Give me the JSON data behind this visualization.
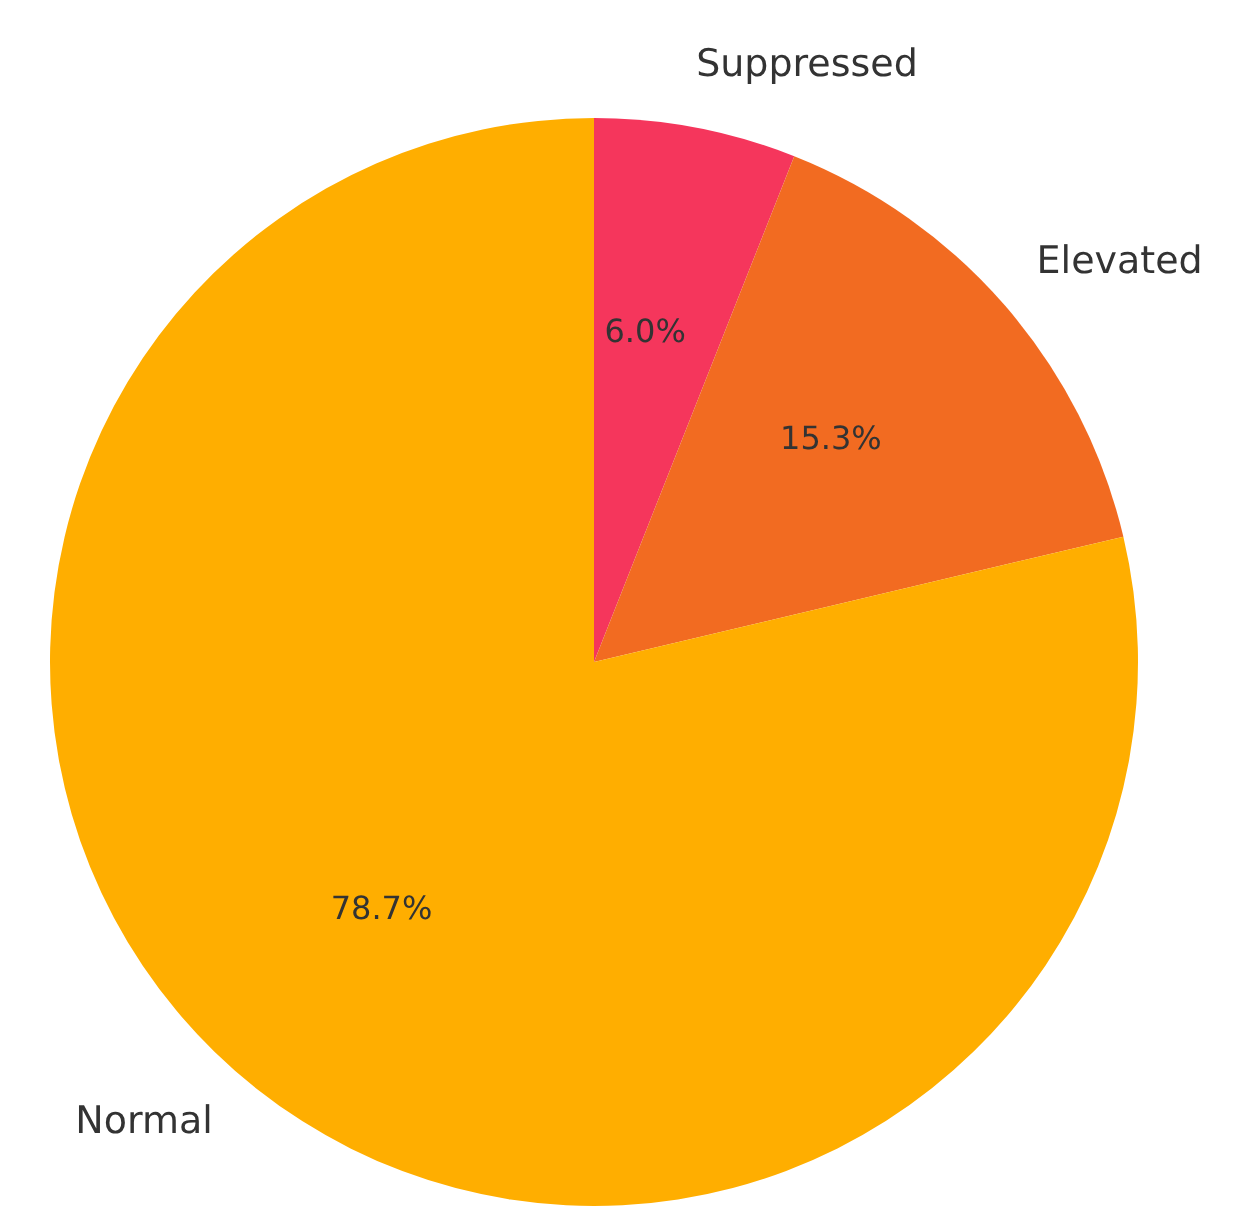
{
  "chart_data": {
    "type": "pie",
    "categories": [
      "Suppressed",
      "Elevated",
      "Normal"
    ],
    "values": [
      6.0,
      15.3,
      78.7
    ],
    "colors": [
      "#f5365c",
      "#f26b21",
      "#ffae00"
    ],
    "value_labels": [
      "6.0%",
      "15.3%",
      "78.7%"
    ]
  }
}
